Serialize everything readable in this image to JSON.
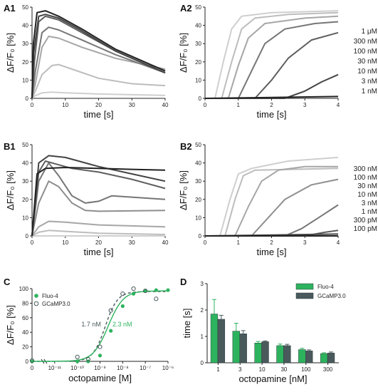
{
  "colors": {
    "fluo4": "#2db35e",
    "gcamp": "#4a5a5c",
    "axis": "#222222",
    "traces": [
      "#cfcfcf",
      "#bdbdbd",
      "#a6a6a6",
      "#8e8e8e",
      "#767676",
      "#5e5e5e",
      "#444444",
      "#222222"
    ]
  },
  "chart_data": [
    {
      "panel": "A1",
      "type": "line",
      "xlabel": "time [s]",
      "ylabel": "ΔF/F₀ [%]",
      "xlim": [
        0,
        40
      ],
      "ylim": [
        0,
        50
      ],
      "xticks": [
        "0",
        "10",
        "20",
        "30",
        "40"
      ],
      "yticks": [
        "0",
        "10",
        "20",
        "30",
        "40",
        "50"
      ],
      "series": [
        {
          "values": [
            [
              0,
              0
            ],
            [
              1,
              1.5
            ],
            [
              3,
              3
            ],
            [
              6,
              3.4
            ],
            [
              10,
              3
            ],
            [
              20,
              2.4
            ],
            [
              30,
              2
            ],
            [
              40,
              1.6
            ]
          ]
        },
        {
          "values": [
            [
              0,
              0
            ],
            [
              1,
              4
            ],
            [
              3,
              13
            ],
            [
              6,
              18
            ],
            [
              8,
              18.5
            ],
            [
              12,
              16
            ],
            [
              20,
              11
            ],
            [
              30,
              8
            ],
            [
              40,
              7
            ]
          ]
        },
        {
          "values": [
            [
              0,
              0
            ],
            [
              1,
              8
            ],
            [
              3,
              28
            ],
            [
              5,
              34
            ],
            [
              8,
              33
            ],
            [
              15,
              28
            ],
            [
              25,
              22
            ],
            [
              40,
              16
            ]
          ]
        },
        {
          "values": [
            [
              0,
              0
            ],
            [
              1,
              15
            ],
            [
              3,
              36
            ],
            [
              5,
              39
            ],
            [
              8,
              37.5
            ],
            [
              15,
              32
            ],
            [
              25,
              24
            ],
            [
              40,
              14
            ]
          ]
        },
        {
          "values": [
            [
              0,
              0
            ],
            [
              0.7,
              20
            ],
            [
              2,
              42
            ],
            [
              4,
              45
            ],
            [
              8,
              43
            ],
            [
              15,
              36
            ],
            [
              25,
              26
            ],
            [
              40,
              14
            ]
          ]
        },
        {
          "values": [
            [
              0,
              0
            ],
            [
              0.5,
              25
            ],
            [
              2,
              45
            ],
            [
              4,
              46
            ],
            [
              8,
              44
            ],
            [
              15,
              37
            ],
            [
              25,
              26
            ],
            [
              40,
              14
            ]
          ]
        },
        {
          "values": [
            [
              0,
              0
            ],
            [
              0.4,
              30
            ],
            [
              1.5,
              47
            ],
            [
              4,
              48
            ],
            [
              8,
              45
            ],
            [
              15,
              38
            ],
            [
              25,
              27
            ],
            [
              40,
              15
            ]
          ]
        }
      ]
    },
    {
      "panel": "A2",
      "type": "line",
      "xlabel": "time [s]",
      "ylabel": "ΔF/F₀ [%]",
      "xlim": [
        0,
        4
      ],
      "ylim": [
        0,
        50
      ],
      "xticks": [
        "0",
        "1",
        "2",
        "3",
        "4"
      ],
      "yticks": [
        "0",
        "10",
        "20",
        "30",
        "40",
        "50"
      ],
      "series": [
        {
          "name": "1 μM",
          "values": [
            [
              0,
              0
            ],
            [
              0.3,
              0
            ],
            [
              0.55,
              20
            ],
            [
              0.8,
              38
            ],
            [
              1.1,
              45
            ],
            [
              2,
              47
            ],
            [
              4,
              48
            ]
          ]
        },
        {
          "name": "300 nM",
          "values": [
            [
              0,
              0
            ],
            [
              0.5,
              0
            ],
            [
              0.8,
              20
            ],
            [
              1.1,
              38
            ],
            [
              1.5,
              44
            ],
            [
              2.5,
              46
            ],
            [
              4,
              47
            ]
          ]
        },
        {
          "name": "100 nM",
          "values": [
            [
              0,
              0
            ],
            [
              0.7,
              0
            ],
            [
              1.0,
              18
            ],
            [
              1.3,
              33
            ],
            [
              1.8,
              41
            ],
            [
              3,
              44
            ],
            [
              4,
              45
            ]
          ]
        },
        {
          "name": "30 nM",
          "values": [
            [
              0,
              0
            ],
            [
              1.0,
              0
            ],
            [
              1.4,
              15
            ],
            [
              1.8,
              30
            ],
            [
              2.4,
              38
            ],
            [
              3.3,
              41
            ],
            [
              4,
              42
            ]
          ]
        },
        {
          "name": "10 nM",
          "values": [
            [
              0,
              0
            ],
            [
              1.5,
              0
            ],
            [
              2.0,
              10
            ],
            [
              2.5,
              22
            ],
            [
              3.2,
              32
            ],
            [
              4,
              36
            ]
          ]
        },
        {
          "name": "3 nM",
          "values": [
            [
              0,
              0
            ],
            [
              2.4,
              0
            ],
            [
              3.0,
              4
            ],
            [
              3.5,
              9
            ],
            [
              4,
              13
            ]
          ]
        },
        {
          "name": "1 nM",
          "values": [
            [
              0,
              0
            ],
            [
              4,
              1
            ]
          ]
        }
      ]
    },
    {
      "panel": "B1",
      "type": "line",
      "xlabel": "time [s]",
      "ylabel": "ΔF/F₀ [%]",
      "xlim": [
        0,
        40
      ],
      "ylim": [
        0,
        50
      ],
      "xticks": [
        "0",
        "10",
        "20",
        "30",
        "40"
      ],
      "yticks": [
        "0",
        "10",
        "20",
        "30",
        "40",
        "50"
      ],
      "series": [
        {
          "values": [
            [
              0,
              0
            ],
            [
              40,
              0
            ]
          ]
        },
        {
          "values": [
            [
              0,
              0
            ],
            [
              2,
              2
            ],
            [
              5,
              3
            ],
            [
              10,
              2.5
            ],
            [
              20,
              1.5
            ],
            [
              40,
              0.8
            ]
          ]
        },
        {
          "values": [
            [
              0,
              0
            ],
            [
              2,
              5
            ],
            [
              5,
              8
            ],
            [
              10,
              7.5
            ],
            [
              20,
              6
            ],
            [
              40,
              5
            ]
          ]
        },
        {
          "values": [
            [
              0,
              0
            ],
            [
              2,
              18
            ],
            [
              5,
              30
            ],
            [
              8,
              27
            ],
            [
              12,
              18
            ],
            [
              16,
              14
            ],
            [
              20,
              13.5
            ],
            [
              40,
              14
            ]
          ]
        },
        {
          "values": [
            [
              0,
              0
            ],
            [
              2,
              30
            ],
            [
              5,
              40
            ],
            [
              8,
              33
            ],
            [
              12,
              22
            ],
            [
              16,
              18
            ],
            [
              20,
              19
            ],
            [
              24,
              22
            ],
            [
              40,
              20
            ]
          ]
        },
        {
          "values": [
            [
              0,
              0
            ],
            [
              2,
              35
            ],
            [
              4,
              41
            ],
            [
              8,
              39
            ],
            [
              12,
              37
            ],
            [
              20,
              35
            ],
            [
              30,
              31
            ],
            [
              40,
              26
            ]
          ]
        },
        {
          "values": [
            [
              0,
              0
            ],
            [
              2,
              40
            ],
            [
              5,
              44
            ],
            [
              10,
              43
            ],
            [
              20,
              38
            ],
            [
              30,
              34
            ],
            [
              40,
              30
            ]
          ]
        },
        {
          "values": [
            [
              0,
              0
            ],
            [
              1.5,
              34
            ],
            [
              4,
              37
            ],
            [
              10,
              37.5
            ],
            [
              20,
              37
            ],
            [
              30,
              36.5
            ],
            [
              40,
              36
            ]
          ]
        }
      ]
    },
    {
      "panel": "B2",
      "type": "line",
      "xlabel": "time [s]",
      "ylabel": "ΔF/F₀ [%]",
      "xlim": [
        0,
        4
      ],
      "ylim": [
        0,
        50
      ],
      "xticks": [
        "0",
        "1",
        "2",
        "3",
        "4"
      ],
      "yticks": [
        "0",
        "10",
        "20",
        "30",
        "40",
        "50"
      ],
      "series": [
        {
          "name": "300 nM",
          "values": [
            [
              0,
              0
            ],
            [
              0.45,
              0
            ],
            [
              0.75,
              20
            ],
            [
              1.0,
              34
            ],
            [
              1.4,
              37
            ],
            [
              2.5,
              41
            ],
            [
              4,
              43
            ]
          ]
        },
        {
          "name": "100 nM",
          "values": [
            [
              0,
              0
            ],
            [
              0.6,
              0
            ],
            [
              0.9,
              20
            ],
            [
              1.15,
              33
            ],
            [
              1.5,
              36
            ],
            [
              4,
              37
            ]
          ]
        },
        {
          "name": "30 nM",
          "values": [
            [
              0,
              0
            ],
            [
              0.9,
              0
            ],
            [
              1.3,
              16
            ],
            [
              1.7,
              30
            ],
            [
              2.2,
              36
            ],
            [
              3,
              38
            ],
            [
              4,
              38
            ]
          ]
        },
        {
          "name": "10 nM",
          "values": [
            [
              0,
              0
            ],
            [
              1.4,
              0
            ],
            [
              1.9,
              10
            ],
            [
              2.4,
              20
            ],
            [
              3.2,
              28
            ],
            [
              4,
              31
            ]
          ]
        },
        {
          "name": "3 nM",
          "values": [
            [
              0,
              0
            ],
            [
              2.4,
              0
            ],
            [
              2.9,
              4
            ],
            [
              3.5,
              11
            ],
            [
              4,
              17
            ]
          ]
        },
        {
          "name": "1 nM",
          "values": [
            [
              0,
              0
            ],
            [
              3.0,
              0
            ],
            [
              3.6,
              2
            ],
            [
              4,
              3
            ]
          ]
        },
        {
          "name": "300 pM",
          "values": [
            [
              0,
              0
            ],
            [
              4,
              1
            ]
          ]
        },
        {
          "name": "100 pM",
          "values": [
            [
              0,
              0
            ],
            [
              4,
              0
            ]
          ]
        }
      ]
    },
    {
      "panel": "C",
      "type": "scatter",
      "xlabel": "octopamine [M]",
      "ylabel": "ΔF/F₀ [%]",
      "xscale": "log",
      "ylim": [
        0,
        100
      ],
      "xticks": [
        "0",
        "10⁻¹¹",
        "10⁻¹⁰",
        "10⁻⁹",
        "10⁻⁸",
        "10⁻⁷",
        "10⁻⁶"
      ],
      "yticks": [
        "0",
        "20",
        "40",
        "60",
        "80",
        "100"
      ],
      "legend_position": "top-left",
      "annotations": [
        {
          "text": "1.7 nM",
          "series": "GCaMP3.0"
        },
        {
          "text": "2.3 nM",
          "series": "Fluo-4"
        }
      ],
      "series": [
        {
          "name": "Fluo-4",
          "ec50_nM": 2.3,
          "top": 97,
          "points": [
            [
              0,
              0
            ],
            [
              1e-10,
              0
            ],
            [
              3e-10,
              0
            ],
            [
              1e-09,
              8
            ],
            [
              3e-09,
              42
            ],
            [
              1e-08,
              76
            ],
            [
              3e-08,
              93
            ],
            [
              1e-07,
              97
            ],
            [
              3e-07,
              98
            ],
            [
              1e-06,
              98
            ]
          ]
        },
        {
          "name": "GCaMP3.0",
          "ec50_nM": 1.7,
          "top": 96,
          "points": [
            [
              0,
              1
            ],
            [
              1e-10,
              6
            ],
            [
              3e-10,
              3
            ],
            [
              1e-09,
              20
            ],
            [
              3e-09,
              70
            ],
            [
              1e-08,
              93
            ],
            [
              3e-08,
              100
            ],
            [
              1e-07,
              97
            ],
            [
              3e-07,
              86
            ]
          ]
        }
      ]
    },
    {
      "panel": "D",
      "type": "bar",
      "xlabel": "octopamine [nM]",
      "ylabel": "time [s]",
      "ylim": [
        0,
        3
      ],
      "categories": [
        "1",
        "3",
        "10",
        "30",
        "100",
        "300"
      ],
      "yticks": [
        "0",
        "1",
        "2",
        "3"
      ],
      "legend_position": "top-right",
      "series": [
        {
          "name": "Fluo-4",
          "values": [
            1.85,
            1.2,
            0.75,
            0.65,
            0.5,
            0.35
          ],
          "errors": [
            0.55,
            0.3,
            0.06,
            0.06,
            0.05,
            0.03
          ]
        },
        {
          "name": "GCaMP3.0",
          "values": [
            1.65,
            1.1,
            0.8,
            0.65,
            0.45,
            0.37
          ],
          "errors": [
            0.15,
            0.12,
            0.03,
            0.05,
            0.04,
            0.04
          ]
        }
      ]
    }
  ]
}
